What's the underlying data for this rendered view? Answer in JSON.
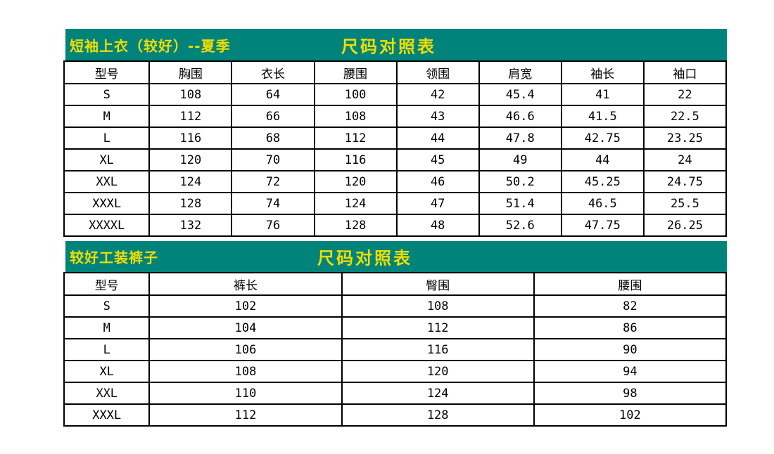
{
  "colors": {
    "band_background": "#00837B",
    "title_text": "#F0DC00",
    "table_border": "#000000",
    "page_background": "#FFFFFF"
  },
  "tables": [
    {
      "title_left": "短袖上衣（较好）--夏季",
      "title_center": "尺码对照表",
      "columns": [
        "型号",
        "胸围",
        "衣长",
        "腰围",
        "领围",
        "肩宽",
        "袖长",
        "袖口"
      ],
      "rows": [
        [
          "S",
          "108",
          "64",
          "100",
          "42",
          "45.4",
          "41",
          "22"
        ],
        [
          "M",
          "112",
          "66",
          "108",
          "43",
          "46.6",
          "41.5",
          "22.5"
        ],
        [
          "L",
          "116",
          "68",
          "112",
          "44",
          "47.8",
          "42.75",
          "23.25"
        ],
        [
          "XL",
          "120",
          "70",
          "116",
          "45",
          "49",
          "44",
          "24"
        ],
        [
          "XXL",
          "124",
          "72",
          "120",
          "46",
          "50.2",
          "45.25",
          "24.75"
        ],
        [
          "XXXL",
          "128",
          "74",
          "124",
          "47",
          "51.4",
          "46.5",
          "25.5"
        ],
        [
          "XXXXL",
          "132",
          "76",
          "128",
          "48",
          "52.6",
          "47.75",
          "26.25"
        ]
      ]
    },
    {
      "title_left": "较好工装裤子",
      "title_center": "尺码对照表",
      "columns": [
        "型号",
        "裤长",
        "臀围",
        "腰围"
      ],
      "rows": [
        [
          "S",
          "102",
          "108",
          "82"
        ],
        [
          "M",
          "104",
          "112",
          "86"
        ],
        [
          "L",
          "106",
          "116",
          "90"
        ],
        [
          "XL",
          "108",
          "120",
          "94"
        ],
        [
          "XXL",
          "110",
          "124",
          "98"
        ],
        [
          "XXXL",
          "112",
          "128",
          "102"
        ]
      ]
    }
  ]
}
